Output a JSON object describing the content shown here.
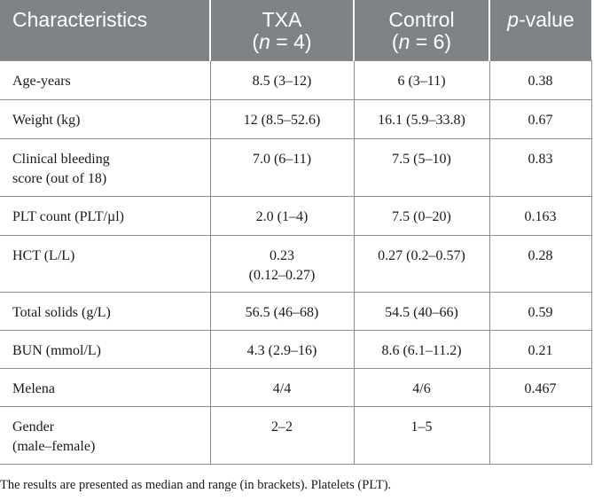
{
  "table": {
    "headers": {
      "characteristics": "Characteristics",
      "txa_name": "TXA",
      "txa_n_open": "(",
      "txa_n_var": "n",
      "txa_n_rest": " = 4)",
      "control_name": "Control",
      "control_n_open": "(",
      "control_n_var": "n",
      "control_n_rest": " = 6)",
      "p_var": "p",
      "p_rest": "-value"
    },
    "rows": [
      {
        "label": "Age-years",
        "txa": "8.5 (3–12)",
        "control": "6 (3–11)",
        "p": "0.38"
      },
      {
        "label": "Weight (kg)",
        "txa": "12 (8.5–52.6)",
        "control": "16.1 (5.9–33.8)",
        "p": "0.67"
      },
      {
        "label_line1": "Clinical bleeding",
        "label_line2": "score (out of 18)",
        "txa": "7.0 (6–11)",
        "control": "7.5 (5–10)",
        "p": "0.83"
      },
      {
        "label": "PLT count (PLT/µl)",
        "txa": "2.0 (1–4)",
        "control": "7.5 (0–20)",
        "p": "0.163"
      },
      {
        "label": "HCT (L/L)",
        "txa_line1": "0.23",
        "txa_line2": "(0.12–0.27)",
        "control": "0.27 (0.2–0.57)",
        "p": "0.28"
      },
      {
        "label": "Total solids (g/L)",
        "txa": "56.5 (46–68)",
        "control": "54.5 (40–66)",
        "p": "0.59"
      },
      {
        "label": "BUN (mmol/L)",
        "txa": "4.3 (2.9–16)",
        "control": "8.6 (6.1–11.2)",
        "p": "0.21"
      },
      {
        "label": "Melena",
        "txa": "4/4",
        "control": "4/6",
        "p": "0.467"
      },
      {
        "label_line1": "Gender",
        "label_line2": "(male–female)",
        "txa": "2–2",
        "control": "1–5",
        "p": ""
      }
    ]
  },
  "caption": "The results are presented as median and range (in brackets). Platelets (PLT)."
}
